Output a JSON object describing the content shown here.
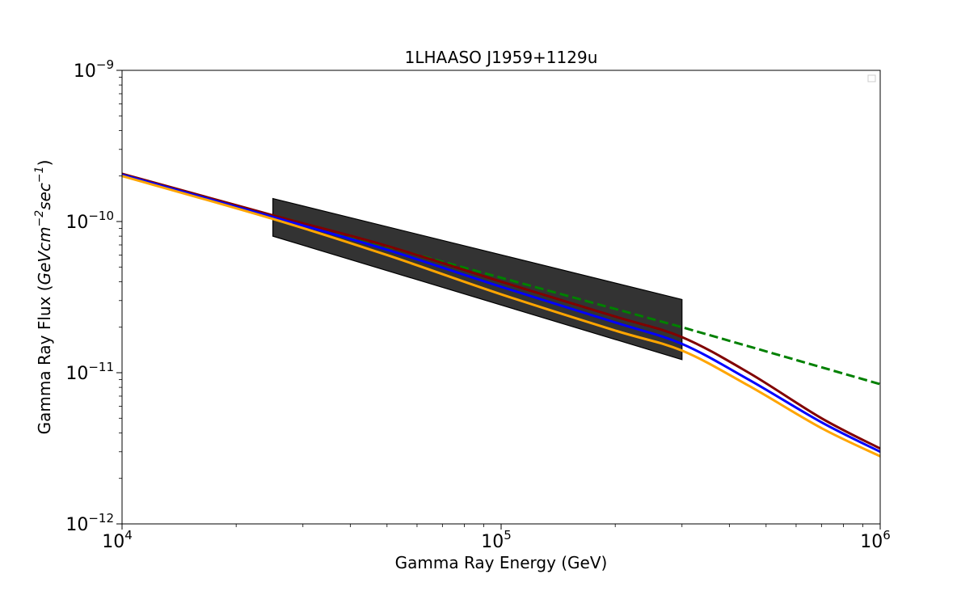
{
  "chart_data": {
    "type": "line",
    "title": "1LHAASO J1959+1129u",
    "xlabel": "Gamma Ray Energy (GeV)",
    "ylabel_main": "Gamma Ray Flux (",
    "ylabel_unit": "GeVcm",
    "ylabel_exp1": "−2",
    "ylabel_unit2": "sec",
    "ylabel_exp2": "−1",
    "ylabel_close": ")",
    "xscale": "log",
    "yscale": "log",
    "xlim": [
      10000,
      1000000
    ],
    "ylim": [
      1e-12,
      1e-09
    ],
    "x_ticks": [
      {
        "value": 10000,
        "base": "10",
        "exp": "4"
      },
      {
        "value": 100000,
        "base": "10",
        "exp": "5"
      },
      {
        "value": 1000000,
        "base": "10",
        "exp": "6"
      }
    ],
    "y_ticks": [
      {
        "value": 1e-12,
        "base": "10",
        "exp": "−12"
      },
      {
        "value": 1e-11,
        "base": "10",
        "exp": "−11"
      },
      {
        "value": 1e-10,
        "base": "10",
        "exp": "−10"
      },
      {
        "value": 1e-09,
        "base": "10",
        "exp": "−9"
      }
    ],
    "grid": false,
    "legend": "top-right",
    "band": {
      "color": "#000000",
      "opacity": 0.8,
      "upper": [
        [
          25000,
          1.42e-10
        ],
        [
          300000,
          3.05e-11
        ]
      ],
      "lower": [
        [
          25000,
          8e-11
        ],
        [
          300000,
          1.22e-11
        ]
      ]
    },
    "series": [
      {
        "color": "#008000",
        "dashed": true,
        "x": [
          25000,
          300000,
          1000000
        ],
        "y": [
          1.1e-10,
          2e-11,
          8.4e-12
        ]
      },
      {
        "color": "#800000",
        "dashed": false,
        "x": [
          10000,
          25000,
          50000,
          100000,
          200000,
          300000,
          450000,
          700000,
          1000000
        ],
        "y": [
          2.07e-10,
          1.1e-10,
          6.9e-11,
          4e-11,
          2.35e-11,
          1.72e-11,
          1e-11,
          5e-12,
          3.15e-12
        ]
      },
      {
        "color": "#0000ff",
        "dashed": false,
        "x": [
          10000,
          25000,
          50000,
          100000,
          200000,
          300000,
          450000,
          700000,
          1000000
        ],
        "y": [
          2.04e-10,
          1.07e-10,
          6.5e-11,
          3.7e-11,
          2.15e-11,
          1.55e-11,
          9e-12,
          4.7e-12,
          3e-12
        ]
      },
      {
        "color": "#ffa500",
        "dashed": false,
        "x": [
          10000,
          25000,
          50000,
          100000,
          200000,
          300000,
          450000,
          700000,
          1000000
        ],
        "y": [
          2e-10,
          1.04e-10,
          6e-11,
          3.3e-11,
          1.9e-11,
          1.4e-11,
          8.2e-12,
          4.3e-12,
          2.8e-12
        ]
      }
    ]
  }
}
